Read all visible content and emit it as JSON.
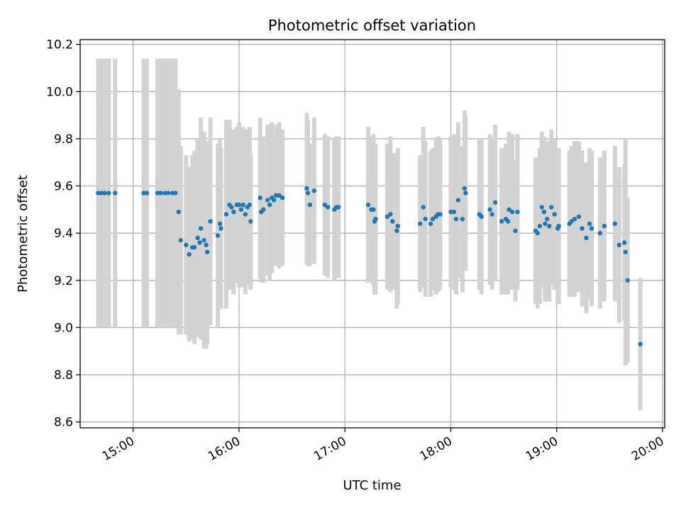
{
  "chart_data": {
    "type": "scatter",
    "title": "Photometric offset variation",
    "xlabel": "UTC time",
    "ylabel": "Photometric offset",
    "x_unit": "hours UTC",
    "xlim": [
      14.5,
      20.02
    ],
    "ylim": [
      8.575,
      10.22
    ],
    "grid": true,
    "x_ticks": [
      {
        "value": 15,
        "label": "15:00"
      },
      {
        "value": 16,
        "label": "16:00"
      },
      {
        "value": 17,
        "label": "17:00"
      },
      {
        "value": 18,
        "label": "18:00"
      },
      {
        "value": 19,
        "label": "19:00"
      },
      {
        "value": 20,
        "label": "20:00"
      }
    ],
    "y_ticks": [
      {
        "value": 8.6,
        "label": "8.6"
      },
      {
        "value": 8.8,
        "label": "8.8"
      },
      {
        "value": 9.0,
        "label": "9.0"
      },
      {
        "value": 9.2,
        "label": "9.2"
      },
      {
        "value": 9.4,
        "label": "9.4"
      },
      {
        "value": 9.6,
        "label": "9.6"
      },
      {
        "value": 9.8,
        "label": "9.8"
      },
      {
        "value": 10.0,
        "label": "10.0"
      },
      {
        "value": 10.2,
        "label": "10.2"
      }
    ],
    "colors": {
      "marker": "#1f77b4",
      "errorbar": "#d3d3d3",
      "grid": "#b0b0b0"
    },
    "points": [
      [
        14.67,
        9.57,
        0.57
      ],
      [
        14.7,
        9.57,
        0.57
      ],
      [
        14.73,
        9.57,
        0.57
      ],
      [
        14.77,
        9.57,
        0.57
      ],
      [
        14.83,
        9.57,
        0.57
      ],
      [
        15.1,
        9.57,
        0.57
      ],
      [
        15.13,
        9.57,
        0.57
      ],
      [
        15.23,
        9.57,
        0.57
      ],
      [
        15.26,
        9.57,
        0.57
      ],
      [
        15.3,
        9.57,
        0.57
      ],
      [
        15.33,
        9.57,
        0.57
      ],
      [
        15.37,
        9.57,
        0.57
      ],
      [
        15.4,
        9.57,
        0.57
      ],
      [
        15.43,
        9.49,
        0.52
      ],
      [
        15.45,
        9.37,
        0.4
      ],
      [
        15.5,
        9.35,
        0.38
      ],
      [
        15.53,
        9.31,
        0.37
      ],
      [
        15.56,
        9.34,
        0.39
      ],
      [
        15.58,
        9.34,
        0.41
      ],
      [
        15.61,
        9.38,
        0.42
      ],
      [
        15.63,
        9.36,
        0.4
      ],
      [
        15.64,
        9.42,
        0.47
      ],
      [
        15.67,
        9.37,
        0.46
      ],
      [
        15.69,
        9.35,
        0.44
      ],
      [
        15.7,
        9.32,
        0.39
      ],
      [
        15.73,
        9.45,
        0.44
      ],
      [
        15.8,
        9.39,
        0.39
      ],
      [
        15.82,
        9.44,
        0.36
      ],
      [
        15.83,
        9.42,
        0.34
      ],
      [
        15.88,
        9.48,
        0.4
      ],
      [
        15.91,
        9.52,
        0.36
      ],
      [
        15.93,
        9.51,
        0.33
      ],
      [
        15.95,
        9.49,
        0.35
      ],
      [
        15.98,
        9.52,
        0.33
      ],
      [
        16.0,
        9.52,
        0.35
      ],
      [
        16.02,
        9.5,
        0.33
      ],
      [
        16.04,
        9.52,
        0.33
      ],
      [
        16.06,
        9.48,
        0.34
      ],
      [
        16.08,
        9.51,
        0.33
      ],
      [
        16.1,
        9.52,
        0.33
      ],
      [
        16.11,
        9.45,
        0.29
      ],
      [
        16.2,
        9.55,
        0.34
      ],
      [
        16.21,
        9.49,
        0.3
      ],
      [
        16.23,
        9.5,
        0.31
      ],
      [
        16.27,
        9.54,
        0.32
      ],
      [
        16.29,
        9.52,
        0.32
      ],
      [
        16.31,
        9.55,
        0.32
      ],
      [
        16.33,
        9.54,
        0.27
      ],
      [
        16.35,
        9.56,
        0.3
      ],
      [
        16.38,
        9.56,
        0.31
      ],
      [
        16.41,
        9.55,
        0.29
      ],
      [
        16.64,
        9.59,
        0.32
      ],
      [
        16.65,
        9.57,
        0.31
      ],
      [
        16.67,
        9.52,
        0.26
      ],
      [
        16.71,
        9.58,
        0.31
      ],
      [
        16.81,
        9.52,
        0.3
      ],
      [
        16.84,
        9.51,
        0.3
      ],
      [
        16.9,
        9.5,
        0.3
      ],
      [
        16.92,
        9.51,
        0.3
      ],
      [
        16.94,
        9.51,
        0.3
      ],
      [
        17.22,
        9.52,
        0.33
      ],
      [
        17.25,
        9.5,
        0.31
      ],
      [
        17.28,
        9.45,
        0.31
      ],
      [
        17.29,
        9.46,
        0.32
      ],
      [
        17.27,
        9.5,
        0.32
      ],
      [
        17.4,
        9.47,
        0.31
      ],
      [
        17.43,
        9.48,
        0.33
      ],
      [
        17.45,
        9.45,
        0.29
      ],
      [
        17.49,
        9.41,
        0.33
      ],
      [
        17.5,
        9.43,
        0.33
      ],
      [
        17.71,
        9.44,
        0.29
      ],
      [
        17.74,
        9.51,
        0.34
      ],
      [
        17.76,
        9.46,
        0.33
      ],
      [
        17.81,
        9.44,
        0.31
      ],
      [
        17.83,
        9.46,
        0.3
      ],
      [
        17.86,
        9.47,
        0.33
      ],
      [
        17.88,
        9.48,
        0.33
      ],
      [
        17.9,
        9.48,
        0.32
      ],
      [
        18.0,
        9.49,
        0.32
      ],
      [
        18.03,
        9.49,
        0.33
      ],
      [
        18.05,
        9.46,
        0.32
      ],
      [
        18.07,
        9.54,
        0.33
      ],
      [
        18.11,
        9.46,
        0.31
      ],
      [
        18.13,
        9.59,
        0.33
      ],
      [
        18.14,
        9.57,
        0.33
      ],
      [
        18.27,
        9.48,
        0.32
      ],
      [
        18.29,
        9.47,
        0.33
      ],
      [
        18.37,
        9.5,
        0.32
      ],
      [
        18.39,
        9.48,
        0.32
      ],
      [
        18.42,
        9.53,
        0.33
      ],
      [
        18.48,
        9.45,
        0.31
      ],
      [
        18.52,
        9.46,
        0.32
      ],
      [
        18.54,
        9.45,
        0.31
      ],
      [
        18.55,
        9.5,
        0.33
      ],
      [
        18.58,
        9.49,
        0.33
      ],
      [
        18.61,
        9.41,
        0.3
      ],
      [
        18.63,
        9.49,
        0.33
      ],
      [
        18.8,
        9.41,
        0.31
      ],
      [
        18.82,
        9.4,
        0.32
      ],
      [
        18.84,
        9.43,
        0.33
      ],
      [
        18.86,
        9.51,
        0.32
      ],
      [
        18.88,
        9.49,
        0.32
      ],
      [
        18.89,
        9.44,
        0.33
      ],
      [
        18.91,
        9.46,
        0.33
      ],
      [
        18.93,
        9.43,
        0.32
      ],
      [
        18.95,
        9.51,
        0.33
      ],
      [
        18.98,
        9.48,
        0.32
      ],
      [
        19.01,
        9.42,
        0.32
      ],
      [
        19.02,
        9.43,
        0.33
      ],
      [
        19.12,
        9.44,
        0.31
      ],
      [
        19.14,
        9.45,
        0.32
      ],
      [
        19.17,
        9.46,
        0.33
      ],
      [
        19.21,
        9.47,
        0.32
      ],
      [
        19.24,
        9.42,
        0.33
      ],
      [
        19.28,
        9.38,
        0.32
      ],
      [
        19.31,
        9.44,
        0.32
      ],
      [
        19.33,
        9.42,
        0.33
      ],
      [
        19.41,
        9.4,
        0.32
      ],
      [
        19.45,
        9.43,
        0.32
      ],
      [
        19.55,
        9.44,
        0.33
      ],
      [
        19.59,
        9.35,
        0.33
      ],
      [
        19.64,
        9.36,
        0.33
      ],
      [
        19.65,
        9.32,
        0.48
      ],
      [
        19.67,
        9.2,
        0.35
      ],
      [
        19.79,
        8.93,
        0.28
      ]
    ]
  }
}
